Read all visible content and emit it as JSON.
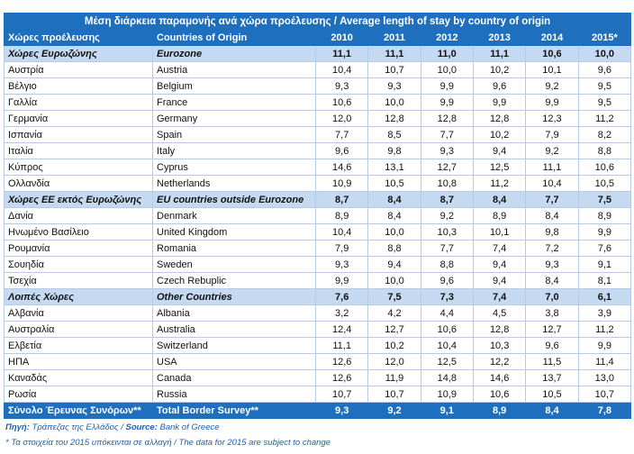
{
  "title": "Μέση διάρκεια παραμονής ανά χώρα προέλευσης / Average length of stay by country of origin",
  "headers": {
    "col_gr": "Χώρες προέλευσης",
    "col_en": "Countries of Origin",
    "years": [
      "2010",
      "2011",
      "2012",
      "2013",
      "2014",
      "2015*"
    ]
  },
  "rows": [
    {
      "gr": "Χώρες Ευρωζώνης",
      "en": "Eurozone",
      "kind": "group",
      "v": [
        "11,1",
        "11,1",
        "11,0",
        "11,1",
        "10,6",
        "10,0"
      ]
    },
    {
      "gr": "Αυστρία",
      "en": "Austria",
      "kind": "row",
      "v": [
        "10,4",
        "10,7",
        "10,0",
        "10,2",
        "10,1",
        "9,6"
      ]
    },
    {
      "gr": "Βέλγιο",
      "en": "Belgium",
      "kind": "row",
      "v": [
        "9,3",
        "9,3",
        "9,9",
        "9,6",
        "9,2",
        "9,5"
      ]
    },
    {
      "gr": "Γαλλία",
      "en": "France",
      "kind": "row",
      "v": [
        "10,6",
        "10,0",
        "9,9",
        "9,9",
        "9,9",
        "9,5"
      ]
    },
    {
      "gr": "Γερμανία",
      "en": "Germany",
      "kind": "row",
      "v": [
        "12,0",
        "12,8",
        "12,8",
        "12,8",
        "12,3",
        "11,2"
      ]
    },
    {
      "gr": "Ισπανία",
      "en": "Spain",
      "kind": "row",
      "v": [
        "7,7",
        "8,5",
        "7,7",
        "10,2",
        "7,9",
        "8,2"
      ]
    },
    {
      "gr": "Ιταλία",
      "en": "Italy",
      "kind": "row",
      "v": [
        "9,6",
        "9,8",
        "9,3",
        "9,4",
        "9,2",
        "8,8"
      ]
    },
    {
      "gr": "Κύπρος",
      "en": "Cyprus",
      "kind": "row",
      "v": [
        "14,6",
        "13,1",
        "12,7",
        "12,5",
        "11,1",
        "10,6"
      ]
    },
    {
      "gr": "Ολλανδία",
      "en": "Netherlands",
      "kind": "row",
      "v": [
        "10,9",
        "10,5",
        "10,8",
        "11,2",
        "10,4",
        "10,5"
      ]
    },
    {
      "gr": "Χώρες ΕΕ εκτός Ευρωζώνης",
      "en": "EU countries outside Eurozone",
      "kind": "group",
      "v": [
        "8,7",
        "8,4",
        "8,7",
        "8,4",
        "7,7",
        "7,5"
      ]
    },
    {
      "gr": "Δανία",
      "en": "Denmark",
      "kind": "row",
      "v": [
        "8,9",
        "8,4",
        "9,2",
        "8,9",
        "8,4",
        "8,9"
      ]
    },
    {
      "gr": "Ηνωμένο Βασίλειο",
      "en": "United Kingdom",
      "kind": "row",
      "v": [
        "10,4",
        "10,0",
        "10,3",
        "10,1",
        "9,8",
        "9,9"
      ]
    },
    {
      "gr": "Ρουμανία",
      "en": "Romania",
      "kind": "row",
      "v": [
        "7,9",
        "8,8",
        "7,7",
        "7,4",
        "7,2",
        "7,6"
      ]
    },
    {
      "gr": "Σουηδία",
      "en": "Sweden",
      "kind": "row",
      "v": [
        "9,3",
        "9,4",
        "8,8",
        "9,4",
        "9,3",
        "9,1"
      ]
    },
    {
      "gr": "Τσεχία",
      "en": "Czech Rebuplic",
      "kind": "row",
      "v": [
        "9,9",
        "10,0",
        "9,6",
        "9,4",
        "8,4",
        "8,1"
      ]
    },
    {
      "gr": "Λοιπές Χώρες",
      "en": "Other Countries",
      "kind": "group",
      "v": [
        "7,6",
        "7,5",
        "7,3",
        "7,4",
        "7,0",
        "6,1"
      ]
    },
    {
      "gr": "Αλβανία",
      "en": "Albania",
      "kind": "row",
      "v": [
        "3,2",
        "4,2",
        "4,4",
        "4,5",
        "3,8",
        "3,9"
      ]
    },
    {
      "gr": "Αυστραλία",
      "en": "Australia",
      "kind": "row",
      "v": [
        "12,4",
        "12,7",
        "10,6",
        "12,8",
        "12,7",
        "11,2"
      ]
    },
    {
      "gr": "Ελβετία",
      "en": "Switzerland",
      "kind": "row",
      "v": [
        "11,1",
        "10,2",
        "10,4",
        "10,3",
        "9,6",
        "9,9"
      ]
    },
    {
      "gr": "ΗΠΑ",
      "en": "USA",
      "kind": "row",
      "v": [
        "12,6",
        "12,0",
        "12,5",
        "12,2",
        "11,5",
        "11,4"
      ]
    },
    {
      "gr": "Καναδάς",
      "en": "Canada",
      "kind": "row",
      "v": [
        "12,6",
        "11,9",
        "14,8",
        "14,6",
        "13,7",
        "13,0"
      ]
    },
    {
      "gr": "Ρωσία",
      "en": "Russia",
      "kind": "row",
      "v": [
        "10,7",
        "10,7",
        "10,9",
        "10,6",
        "10,5",
        "10,7"
      ]
    },
    {
      "gr": "Σύνολο Έρευνας Συνόρων**",
      "en": "Total Border Survey**",
      "kind": "total",
      "v": [
        "9,3",
        "9,2",
        "9,1",
        "8,9",
        "8,4",
        "7,8"
      ]
    }
  ],
  "source": {
    "label_gr": "Πηγή:",
    "text_gr": "Τράπεζας της Ελλάδος /",
    "label_en": "Source:",
    "text_en": "Bank of Greece"
  },
  "note": "* Τα στοιχεία του 2015 υπόκεινται σε αλλαγή / The data for 2015 are subject to change"
}
